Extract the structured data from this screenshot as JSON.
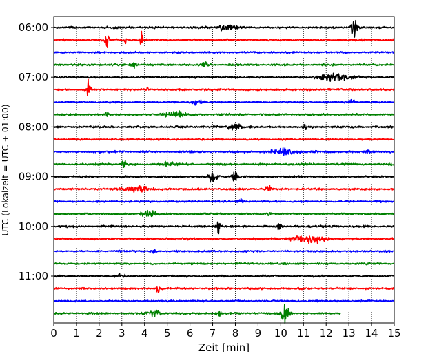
{
  "chart_data": {
    "type": "line",
    "subtype": "helicorder-seismogram",
    "xlabel": "Zeit  [min]",
    "ylabel": "UTC (Lokalzeit = UTC + 01:00)",
    "xlim": [
      0,
      15
    ],
    "x_ticks": [
      0,
      1,
      2,
      3,
      4,
      5,
      6,
      7,
      8,
      9,
      10,
      11,
      12,
      13,
      14,
      15
    ],
    "x_tick_labels": [
      "0",
      "1",
      "2",
      "3",
      "4",
      "5",
      "6",
      "7",
      "8",
      "9",
      "10",
      "11",
      "12",
      "13",
      "14",
      "15"
    ],
    "x_grid": "dotted vertical at each minute",
    "y_tick_labels": [
      "06:00",
      "07:00",
      "08:00",
      "09:00",
      "10:00",
      "11:00"
    ],
    "y_tick_row_index": [
      0,
      4,
      8,
      12,
      16,
      20
    ],
    "row_minutes": 15,
    "start_time": "06:00",
    "color_cycle": [
      "#000000",
      "#ff0000",
      "#0000ff",
      "#008000"
    ],
    "traces": [
      {
        "start": "06:00",
        "color": "#000000",
        "noise": 0.9,
        "end_minute": 15,
        "events": [
          {
            "t": 7.6,
            "amp": 3,
            "dur": 0.35
          },
          {
            "t": 13.25,
            "amp": 10,
            "dur": 0.15
          }
        ]
      },
      {
        "start": "06:15",
        "color": "#ff0000",
        "noise": 0.9,
        "end_minute": 15,
        "events": [
          {
            "t": 2.35,
            "amp": 9,
            "dur": 0.08
          },
          {
            "t": 3.15,
            "amp": 5,
            "dur": 0.05
          },
          {
            "t": 3.85,
            "amp": 10,
            "dur": 0.06
          }
        ]
      },
      {
        "start": "06:30",
        "color": "#0000ff",
        "noise": 0.8,
        "end_minute": 15,
        "events": []
      },
      {
        "start": "06:45",
        "color": "#008000",
        "noise": 0.9,
        "end_minute": 15,
        "events": [
          {
            "t": 3.55,
            "amp": 3,
            "dur": 0.12
          },
          {
            "t": 6.65,
            "amp": 3,
            "dur": 0.12
          }
        ]
      },
      {
        "start": "07:00",
        "color": "#000000",
        "noise": 0.9,
        "end_minute": 15,
        "events": [
          {
            "t": 12.4,
            "amp": 3,
            "dur": 0.7
          }
        ]
      },
      {
        "start": "07:15",
        "color": "#ff0000",
        "noise": 0.9,
        "end_minute": 15,
        "events": [
          {
            "t": 1.55,
            "amp": 11,
            "dur": 0.07
          },
          {
            "t": 4.1,
            "amp": 3,
            "dur": 0.06
          }
        ]
      },
      {
        "start": "07:30",
        "color": "#0000ff",
        "noise": 0.8,
        "end_minute": 15,
        "events": [
          {
            "t": 6.3,
            "amp": 2,
            "dur": 0.25
          },
          {
            "t": 13.1,
            "amp": 2,
            "dur": 0.15
          }
        ]
      },
      {
        "start": "07:45",
        "color": "#008000",
        "noise": 0.9,
        "end_minute": 15,
        "events": [
          {
            "t": 2.35,
            "amp": 3,
            "dur": 0.1
          },
          {
            "t": 5.35,
            "amp": 3,
            "dur": 0.45
          }
        ]
      },
      {
        "start": "08:00",
        "color": "#000000",
        "noise": 0.9,
        "end_minute": 15,
        "events": [
          {
            "t": 8.0,
            "amp": 3,
            "dur": 0.3
          },
          {
            "t": 11.1,
            "amp": 3,
            "dur": 0.1
          }
        ]
      },
      {
        "start": "08:15",
        "color": "#ff0000",
        "noise": 0.8,
        "end_minute": 15,
        "events": []
      },
      {
        "start": "08:30",
        "color": "#0000ff",
        "noise": 0.9,
        "end_minute": 15,
        "events": [
          {
            "t": 10.2,
            "amp": 3,
            "dur": 0.55
          },
          {
            "t": 13.8,
            "amp": 3,
            "dur": 0.1
          }
        ]
      },
      {
        "start": "08:45",
        "color": "#008000",
        "noise": 0.9,
        "end_minute": 15,
        "events": [
          {
            "t": 3.1,
            "amp": 4,
            "dur": 0.1
          },
          {
            "t": 5.0,
            "amp": 2,
            "dur": 0.3
          }
        ]
      },
      {
        "start": "09:00",
        "color": "#000000",
        "noise": 0.9,
        "end_minute": 15,
        "events": [
          {
            "t": 7.0,
            "amp": 5,
            "dur": 0.2
          },
          {
            "t": 7.95,
            "amp": 6,
            "dur": 0.12
          }
        ]
      },
      {
        "start": "09:15",
        "color": "#ff0000",
        "noise": 0.9,
        "end_minute": 15,
        "events": [
          {
            "t": 3.6,
            "amp": 3,
            "dur": 0.6
          },
          {
            "t": 9.45,
            "amp": 5,
            "dur": 0.1
          }
        ]
      },
      {
        "start": "09:30",
        "color": "#0000ff",
        "noise": 0.8,
        "end_minute": 15,
        "events": [
          {
            "t": 8.2,
            "amp": 2,
            "dur": 0.2
          }
        ]
      },
      {
        "start": "09:45",
        "color": "#008000",
        "noise": 0.9,
        "end_minute": 15,
        "events": [
          {
            "t": 4.2,
            "amp": 3,
            "dur": 0.3
          },
          {
            "t": 9.5,
            "amp": 2,
            "dur": 0.1
          }
        ]
      },
      {
        "start": "10:00",
        "color": "#000000",
        "noise": 0.9,
        "end_minute": 15,
        "events": [
          {
            "t": 7.25,
            "amp": 6,
            "dur": 0.08
          },
          {
            "t": 9.95,
            "amp": 4,
            "dur": 0.08
          }
        ]
      },
      {
        "start": "10:15",
        "color": "#ff0000",
        "noise": 0.9,
        "end_minute": 15,
        "events": [
          {
            "t": 11.2,
            "amp": 4,
            "dur": 0.7
          }
        ]
      },
      {
        "start": "10:30",
        "color": "#0000ff",
        "noise": 0.8,
        "end_minute": 15,
        "events": [
          {
            "t": 4.4,
            "amp": 2,
            "dur": 0.1
          }
        ]
      },
      {
        "start": "10:45",
        "color": "#008000",
        "noise": 0.8,
        "end_minute": 15,
        "events": []
      },
      {
        "start": "11:00",
        "color": "#000000",
        "noise": 0.9,
        "end_minute": 15,
        "events": [
          {
            "t": 3.0,
            "amp": 2,
            "dur": 0.2
          }
        ]
      },
      {
        "start": "11:15",
        "color": "#ff0000",
        "noise": 0.9,
        "end_minute": 15,
        "events": [
          {
            "t": 4.6,
            "amp": 9,
            "dur": 0.06
          }
        ]
      },
      {
        "start": "11:30",
        "color": "#0000ff",
        "noise": 0.8,
        "end_minute": 15,
        "events": []
      },
      {
        "start": "11:45",
        "color": "#008000",
        "noise": 0.9,
        "end_minute": 12.65,
        "events": [
          {
            "t": 4.5,
            "amp": 3,
            "dur": 0.3
          },
          {
            "t": 7.25,
            "amp": 3,
            "dur": 0.1
          },
          {
            "t": 10.2,
            "amp": 10,
            "dur": 0.18
          }
        ]
      }
    ]
  }
}
